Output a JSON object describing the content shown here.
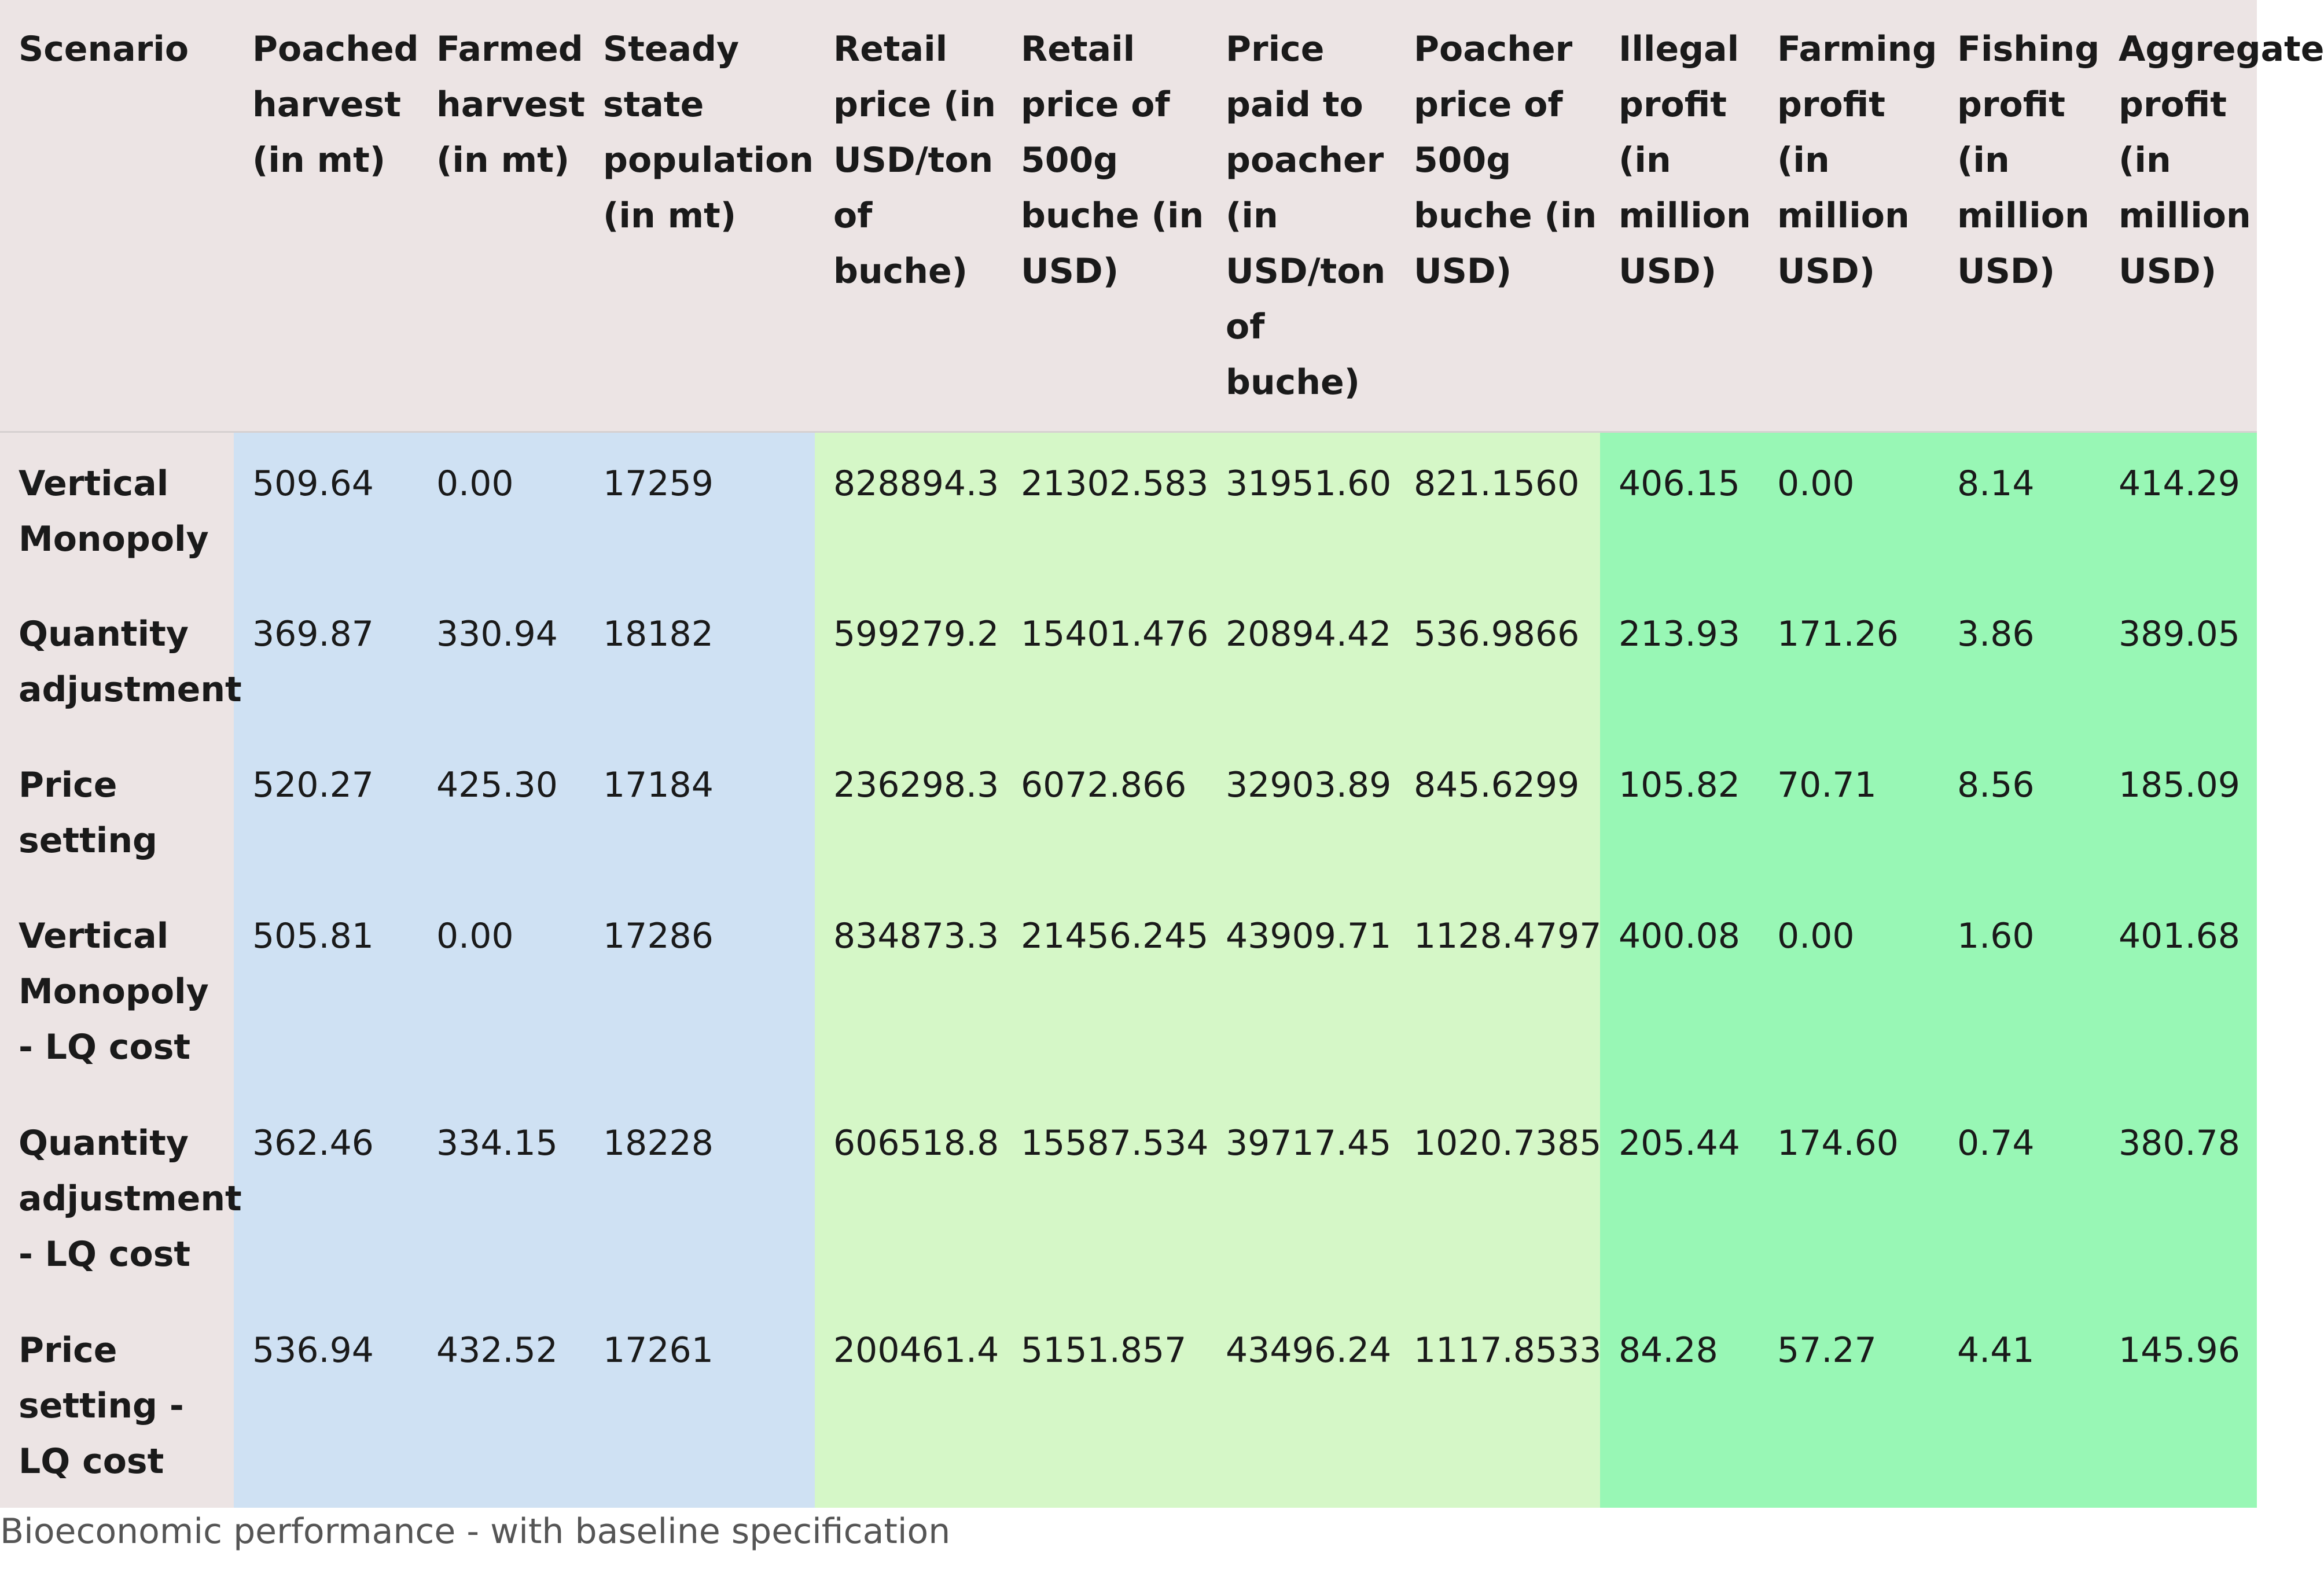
{
  "table": {
    "headers": [
      "Scenario",
      "Poached harvest (in mt)",
      "Farmed harvest (in mt)",
      "Steady state population (in mt)",
      "Retail price (in USD/ton of buche)",
      "Retail price of 500g buche (in USD)",
      "Price paid to poacher (in USD/ton of buche)",
      "Poacher price of 500g buche (in USD)",
      "Illegal profit (in million USD)",
      "Farming profit (in million USD)",
      "Fishing profit (in million USD)",
      "Aggregate profit (in million USD)"
    ],
    "rows": [
      [
        "Vertical Monopoly",
        "509.64",
        "0.00",
        "17259",
        "828894.3",
        "21302.583",
        "31951.60",
        "821.1560",
        "406.15",
        "0.00",
        "8.14",
        "414.29"
      ],
      [
        "Quantity adjustment",
        "369.87",
        "330.94",
        "18182",
        "599279.2",
        "15401.476",
        "20894.42",
        "536.9866",
        "213.93",
        "171.26",
        "3.86",
        "389.05"
      ],
      [
        "Price setting",
        "520.27",
        "425.30",
        "17184",
        "236298.3",
        "6072.866",
        "32903.89",
        "845.6299",
        "105.82",
        "70.71",
        "8.56",
        "185.09"
      ],
      [
        "Vertical Monopoly - LQ cost",
        "505.81",
        "0.00",
        "17286",
        "834873.3",
        "21456.245",
        "43909.71",
        "1128.4797",
        "400.08",
        "0.00",
        "1.60",
        "401.68"
      ],
      [
        "Quantity adjustment - LQ cost",
        "362.46",
        "334.15",
        "18228",
        "606518.8",
        "15587.534",
        "39717.45",
        "1020.7385",
        "205.44",
        "174.60",
        "0.74",
        "380.78"
      ],
      [
        "Price setting - LQ cost",
        "536.94",
        "432.52",
        "17261",
        "200461.4",
        "5151.857",
        "43496.24",
        "1117.8533",
        "84.28",
        "57.27",
        "4.41",
        "145.96"
      ]
    ]
  },
  "caption": "Bioeconomic performance - with baseline specification",
  "colors": {
    "header_bg": "#ece4e4",
    "biology_group": "#cfe1f3",
    "price_group": "#d5f7c7",
    "profit_group": "#98f7b5"
  }
}
